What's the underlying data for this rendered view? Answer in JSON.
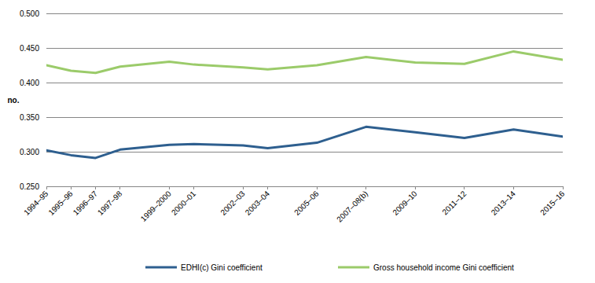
{
  "chart_data": {
    "type": "line",
    "y_label": "no.",
    "x": [
      1994,
      1995,
      1996,
      1997,
      1999,
      2000,
      2002,
      2003,
      2005,
      2007,
      2009,
      2011,
      2013,
      2015
    ],
    "xlim": [
      1994,
      2015
    ],
    "xticks": [
      {
        "value": 1994,
        "label": "1994–95"
      },
      {
        "value": 1995,
        "label": "1995–96"
      },
      {
        "value": 1996,
        "label": "1996–97"
      },
      {
        "value": 1997,
        "label": "1997–98"
      },
      {
        "value": 1999,
        "label": "1999–2000"
      },
      {
        "value": 2000,
        "label": "2000–01"
      },
      {
        "value": 2002,
        "label": "2002–03"
      },
      {
        "value": 2003,
        "label": "2003–04"
      },
      {
        "value": 2005,
        "label": "2005–06"
      },
      {
        "value": 2007,
        "label": "2007–08(b)"
      },
      {
        "value": 2009,
        "label": "2009–10"
      },
      {
        "value": 2011,
        "label": "2011–12"
      },
      {
        "value": 2013,
        "label": "2013–14"
      },
      {
        "value": 2015,
        "label": "2015–16"
      }
    ],
    "ylim": [
      0.25,
      0.5
    ],
    "yticks": [
      {
        "value": 0.25,
        "label": "0.250"
      },
      {
        "value": 0.3,
        "label": "0.300"
      },
      {
        "value": 0.35,
        "label": "0.350"
      },
      {
        "value": 0.4,
        "label": "0.400"
      },
      {
        "value": 0.45,
        "label": "0.450"
      },
      {
        "value": 0.5,
        "label": "0.500"
      }
    ],
    "grid": true,
    "legend": "bottom",
    "series": [
      {
        "name": "EDHI(c) Gini coefficient",
        "color": "#2e5f8f",
        "values": [
          0.302,
          0.295,
          0.291,
          0.303,
          0.31,
          0.311,
          0.309,
          0.305,
          0.313,
          0.336,
          0.328,
          0.32,
          0.332,
          0.322
        ]
      },
      {
        "name": "Gross household income Gini coefficient",
        "color": "#9bcb6a",
        "values": [
          0.425,
          0.417,
          0.414,
          0.423,
          0.43,
          0.426,
          0.422,
          0.419,
          0.425,
          0.437,
          0.429,
          0.427,
          0.445,
          0.433
        ]
      }
    ]
  }
}
